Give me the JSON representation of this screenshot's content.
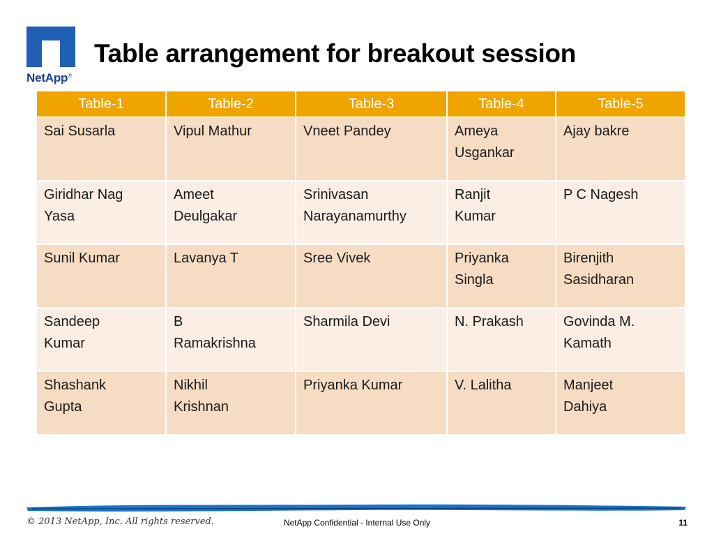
{
  "logo": {
    "text": "NetApp",
    "mark": "®"
  },
  "title": "Table arrangement for breakout session",
  "table": {
    "headers": [
      "Table-1",
      "Table-2",
      "Table-3",
      "Table-4",
      "Table-5"
    ],
    "rows": [
      [
        [
          "Sai Susarla"
        ],
        [
          "Vipul Mathur"
        ],
        [
          "Vneet Pandey"
        ],
        [
          "Ameya",
          "Usgankar"
        ],
        [
          "Ajay bakre"
        ]
      ],
      [
        [
          "Giridhar Nag",
          "Yasa"
        ],
        [
          "Ameet",
          "Deulgakar"
        ],
        [
          "Srinivasan",
          "Narayanamurthy"
        ],
        [
          "Ranjit",
          "Kumar"
        ],
        [
          "P C Nagesh"
        ]
      ],
      [
        [
          "Sunil Kumar"
        ],
        [
          "Lavanya  T"
        ],
        [
          "Sree Vivek"
        ],
        [
          "Priyanka",
          "Singla"
        ],
        [
          "Birenjith",
          "Sasidharan"
        ]
      ],
      [
        [
          "Sandeep",
          "Kumar"
        ],
        [
          "B",
          "Ramakrishna"
        ],
        [
          "Sharmila Devi"
        ],
        [
          "N. Prakash"
        ],
        [
          "Govinda M.",
          "Kamath"
        ]
      ],
      [
        [
          "Shashank",
          "Gupta"
        ],
        [
          "Nikhil",
          "Krishnan"
        ],
        [
          "Priyanka Kumar"
        ],
        [
          "V. Lalitha"
        ],
        [
          "Manjeet",
          "Dahiya"
        ]
      ]
    ]
  },
  "footer": {
    "copyright": "© 2013 NetApp, Inc. All rights reserved.",
    "confidential": "NetApp Confidential - Internal Use Only",
    "page_number": "11"
  },
  "colors": {
    "header_fill": "#f0a400",
    "row_odd_fill": "#f7dcc4",
    "row_even_fill": "#fbeee4",
    "logo_blue": "#1f5fb4",
    "footer_brush": "#1a73c8"
  }
}
